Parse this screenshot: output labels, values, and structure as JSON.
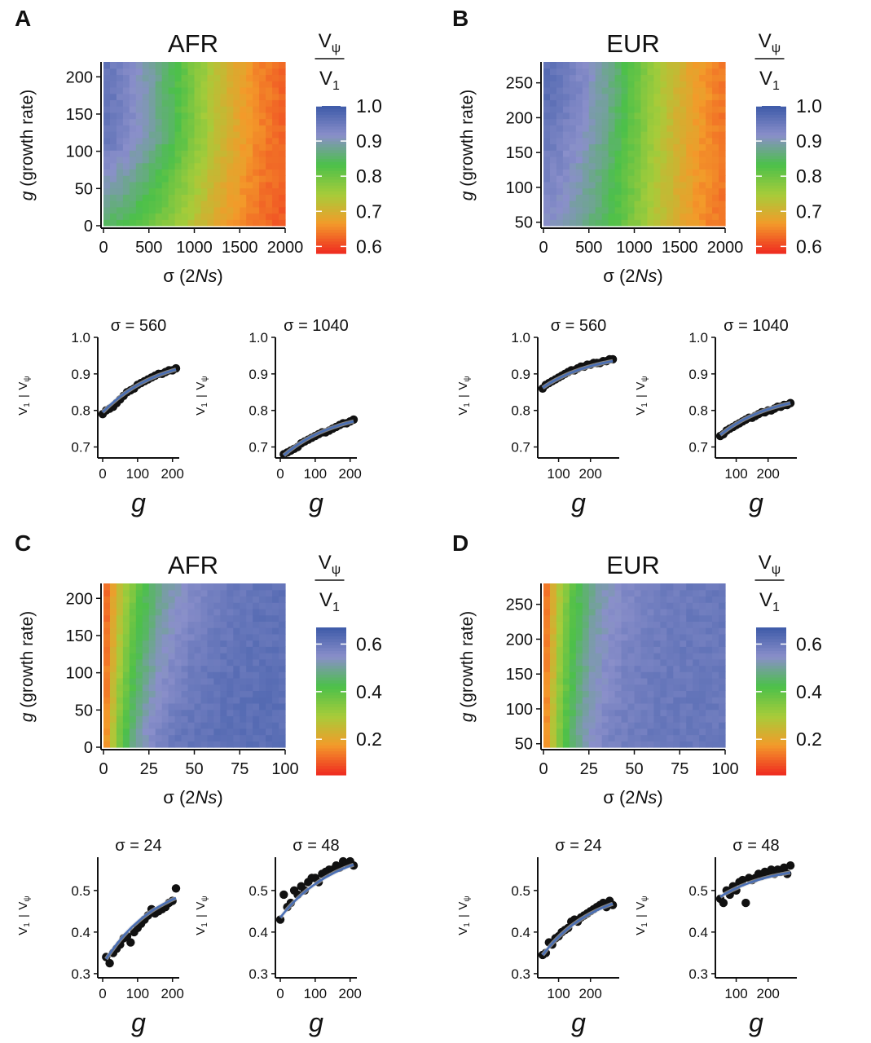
{
  "colors": {
    "axis": "#111111",
    "fit_line": "#4a6fb5",
    "point": "#111111"
  },
  "colormap": [
    "#ef2a21",
    "#f39a2a",
    "#a6cc3a",
    "#4cc04a",
    "#8a8fca",
    "#3d5aa8"
  ],
  "chart_data": [
    {
      "panel": "A",
      "title": "AFR",
      "type": "heatmap",
      "xlabel_pre": "σ (2",
      "xlabel_it": "Ns",
      "xlabel_post": ")",
      "ylabel_it": "g",
      "ylabel_post": " (growth rate)",
      "x_range": [
        0,
        2000
      ],
      "y_range": [
        0,
        220
      ],
      "x_ticks": [
        "0",
        "500",
        "1000",
        "1500",
        "2000"
      ],
      "x_tick_values": [
        0,
        500,
        1000,
        1500,
        2000
      ],
      "y_ticks": [
        "0",
        "50",
        "100",
        "150",
        "200"
      ],
      "y_tick_values": [
        0,
        50,
        100,
        150,
        200
      ],
      "colorbar": {
        "label_num": "V",
        "label_num_sub": "ψ",
        "label_den": "V",
        "label_den_sub": "1",
        "range": [
          0.58,
          1.0
        ],
        "ticks": [
          "1.0",
          "0.9",
          "0.8",
          "0.7",
          "0.6"
        ],
        "tick_values": [
          1.0,
          0.9,
          0.8,
          0.7,
          0.6
        ]
      }
    },
    {
      "panel": "B",
      "title": "EUR",
      "type": "heatmap",
      "xlabel_pre": "σ (2",
      "xlabel_it": "Ns",
      "xlabel_post": ")",
      "ylabel_it": "g",
      "ylabel_post": " (growth rate)",
      "x_range": [
        0,
        2000
      ],
      "y_range": [
        45,
        280
      ],
      "x_ticks": [
        "0",
        "500",
        "1000",
        "1500",
        "2000"
      ],
      "x_tick_values": [
        0,
        500,
        1000,
        1500,
        2000
      ],
      "y_ticks": [
        "50",
        "100",
        "150",
        "200",
        "250"
      ],
      "y_tick_values": [
        50,
        100,
        150,
        200,
        250
      ],
      "colorbar": {
        "label_num": "V",
        "label_num_sub": "ψ",
        "label_den": "V",
        "label_den_sub": "1",
        "range": [
          0.58,
          1.0
        ],
        "ticks": [
          "1.0",
          "0.9",
          "0.8",
          "0.7",
          "0.6"
        ],
        "tick_values": [
          1.0,
          0.9,
          0.8,
          0.7,
          0.6
        ]
      }
    },
    {
      "panel": "C",
      "title": "AFR",
      "type": "heatmap",
      "xlabel_pre": "σ (2",
      "xlabel_it": "Ns",
      "xlabel_post": ")",
      "ylabel_it": "g",
      "ylabel_post": " (growth rate)",
      "x_range": [
        0,
        100
      ],
      "y_range": [
        0,
        220
      ],
      "x_ticks": [
        "0",
        "25",
        "50",
        "75",
        "100"
      ],
      "x_tick_values": [
        0,
        25,
        50,
        75,
        100
      ],
      "y_ticks": [
        "0",
        "50",
        "100",
        "150",
        "200"
      ],
      "y_tick_values": [
        0,
        50,
        100,
        150,
        200
      ],
      "colorbar": {
        "label_num": "V",
        "label_num_sub": "ψ",
        "label_den": "V",
        "label_den_sub": "1",
        "range": [
          0.05,
          0.67
        ],
        "ticks": [
          "0.6",
          "0.4",
          "0.2"
        ],
        "tick_values": [
          0.6,
          0.4,
          0.2
        ]
      }
    },
    {
      "panel": "D",
      "title": "EUR",
      "type": "heatmap",
      "xlabel_pre": "σ (2",
      "xlabel_it": "Ns",
      "xlabel_post": ")",
      "ylabel_it": "g",
      "ylabel_post": " (growth rate)",
      "x_range": [
        0,
        100
      ],
      "y_range": [
        45,
        280
      ],
      "x_ticks": [
        "0",
        "25",
        "50",
        "75",
        "100"
      ],
      "x_tick_values": [
        0,
        25,
        50,
        75,
        100
      ],
      "y_ticks": [
        "50",
        "100",
        "150",
        "200",
        "250"
      ],
      "y_tick_values": [
        50,
        100,
        150,
        200,
        250
      ],
      "colorbar": {
        "label_num": "V",
        "label_num_sub": "ψ",
        "label_den": "V",
        "label_den_sub": "1",
        "range": [
          0.05,
          0.67
        ],
        "ticks": [
          "0.6",
          "0.4",
          "0.2"
        ],
        "tick_values": [
          0.6,
          0.4,
          0.2
        ]
      }
    },
    {
      "panel": "A",
      "type": "scatter",
      "title": "σ = 560",
      "xlabel": "g",
      "ylabel_num": "V",
      "ylabel_num_sub": "ψ",
      "ylabel_den": "V",
      "ylabel_den_sub": "1",
      "x_range": [
        0,
        210
      ],
      "y_range": [
        0.67,
        1.0
      ],
      "x_ticks": [
        "0",
        "100",
        "200"
      ],
      "x_tick_values": [
        0,
        100,
        200
      ],
      "y_ticks": [
        "1.0",
        "0.9",
        "0.8",
        "0.7"
      ],
      "y_tick_values": [
        1.0,
        0.9,
        0.8,
        0.7
      ],
      "x": [
        0,
        10,
        20,
        30,
        40,
        50,
        60,
        70,
        80,
        90,
        100,
        110,
        120,
        130,
        140,
        150,
        160,
        170,
        180,
        190,
        200,
        210
      ],
      "y": [
        0.79,
        0.8,
        0.805,
        0.81,
        0.82,
        0.83,
        0.84,
        0.85,
        0.855,
        0.86,
        0.87,
        0.875,
        0.88,
        0.885,
        0.89,
        0.895,
        0.9,
        0.9,
        0.905,
        0.91,
        0.91,
        0.915
      ],
      "fit": [
        0.795,
        0.912
      ]
    },
    {
      "panel": "A",
      "type": "scatter",
      "title": "σ = 1040",
      "xlabel": "g",
      "ylabel_num": "V",
      "ylabel_num_sub": "ψ",
      "ylabel_den": "V",
      "ylabel_den_sub": "1",
      "x_range": [
        0,
        210
      ],
      "y_range": [
        0.67,
        1.0
      ],
      "x_ticks": [
        "0",
        "100",
        "200"
      ],
      "x_tick_values": [
        0,
        100,
        200
      ],
      "y_ticks": [
        "1.0",
        "0.9",
        "0.8",
        "0.7"
      ],
      "y_tick_values": [
        1.0,
        0.9,
        0.8,
        0.7
      ],
      "x": [
        10,
        20,
        30,
        40,
        50,
        60,
        70,
        80,
        90,
        100,
        110,
        120,
        130,
        140,
        150,
        160,
        170,
        180,
        190,
        200,
        210
      ],
      "y": [
        0.68,
        0.685,
        0.69,
        0.695,
        0.7,
        0.71,
        0.715,
        0.72,
        0.725,
        0.73,
        0.735,
        0.74,
        0.74,
        0.745,
        0.75,
        0.755,
        0.76,
        0.765,
        0.765,
        0.77,
        0.775
      ],
      "fit": [
        0.677,
        0.77
      ]
    },
    {
      "panel": "B",
      "type": "scatter",
      "title": "σ = 560",
      "xlabel": "g",
      "ylabel_num": "V",
      "ylabel_num_sub": "ψ",
      "ylabel_den": "V",
      "ylabel_den_sub": "1",
      "x_range": [
        50,
        280
      ],
      "y_range": [
        0.67,
        1.0
      ],
      "x_ticks": [
        "100",
        "200"
      ],
      "x_tick_values": [
        100,
        200
      ],
      "y_ticks": [
        "1.0",
        "0.9",
        "0.8",
        "0.7"
      ],
      "y_tick_values": [
        1.0,
        0.9,
        0.8,
        0.7
      ],
      "x": [
        50,
        60,
        70,
        80,
        90,
        100,
        110,
        120,
        130,
        140,
        150,
        160,
        170,
        180,
        190,
        200,
        210,
        220,
        230,
        240,
        250,
        260,
        270
      ],
      "y": [
        0.86,
        0.87,
        0.875,
        0.88,
        0.885,
        0.89,
        0.895,
        0.9,
        0.905,
        0.91,
        0.91,
        0.915,
        0.92,
        0.92,
        0.925,
        0.925,
        0.93,
        0.93,
        0.93,
        0.935,
        0.935,
        0.94,
        0.94
      ],
      "fit": [
        0.862,
        0.935
      ]
    },
    {
      "panel": "B",
      "type": "scatter",
      "title": "σ = 1040",
      "xlabel": "g",
      "ylabel_num": "V",
      "ylabel_num_sub": "ψ",
      "ylabel_den": "V",
      "ylabel_den_sub": "1",
      "x_range": [
        50,
        280
      ],
      "y_range": [
        0.67,
        1.0
      ],
      "x_ticks": [
        "100",
        "200"
      ],
      "x_tick_values": [
        100,
        200
      ],
      "y_ticks": [
        "1.0",
        "0.9",
        "0.8",
        "0.7"
      ],
      "y_tick_values": [
        1.0,
        0.9,
        0.8,
        0.7
      ],
      "x": [
        50,
        60,
        70,
        80,
        90,
        100,
        110,
        120,
        130,
        140,
        150,
        160,
        170,
        180,
        190,
        200,
        210,
        220,
        230,
        240,
        250,
        260,
        270
      ],
      "y": [
        0.73,
        0.735,
        0.745,
        0.75,
        0.755,
        0.76,
        0.765,
        0.77,
        0.775,
        0.78,
        0.78,
        0.785,
        0.79,
        0.795,
        0.795,
        0.8,
        0.8,
        0.805,
        0.81,
        0.81,
        0.815,
        0.815,
        0.82
      ],
      "fit": [
        0.733,
        0.82
      ]
    },
    {
      "panel": "C",
      "type": "scatter",
      "title": "σ = 24",
      "xlabel": "g",
      "ylabel_num": "V",
      "ylabel_num_sub": "ψ",
      "ylabel_den": "V",
      "ylabel_den_sub": "1",
      "x_range": [
        0,
        210
      ],
      "y_range": [
        0.29,
        0.58
      ],
      "x_ticks": [
        "0",
        "100",
        "200"
      ],
      "x_tick_values": [
        0,
        100,
        200
      ],
      "y_ticks": [
        "0.5",
        "0.4",
        "0.3"
      ],
      "y_tick_values": [
        0.5,
        0.4,
        0.3
      ],
      "x": [
        10,
        20,
        30,
        40,
        50,
        60,
        70,
        80,
        90,
        100,
        110,
        120,
        130,
        140,
        150,
        160,
        170,
        180,
        190,
        200,
        210
      ],
      "y": [
        0.34,
        0.325,
        0.35,
        0.36,
        0.37,
        0.385,
        0.39,
        0.375,
        0.4,
        0.41,
        0.42,
        0.43,
        0.44,
        0.455,
        0.445,
        0.45,
        0.455,
        0.46,
        0.47,
        0.475,
        0.505
      ],
      "fit": [
        0.335,
        0.482
      ]
    },
    {
      "panel": "C",
      "type": "scatter",
      "title": "σ = 48",
      "xlabel": "g",
      "ylabel_num": "V",
      "ylabel_num_sub": "ψ",
      "ylabel_den": "V",
      "ylabel_den_sub": "1",
      "x_range": [
        0,
        210
      ],
      "y_range": [
        0.29,
        0.58
      ],
      "x_ticks": [
        "0",
        "100",
        "200"
      ],
      "x_tick_values": [
        0,
        100,
        200
      ],
      "y_ticks": [
        "0.5",
        "0.4",
        "0.3"
      ],
      "y_tick_values": [
        0.5,
        0.4,
        0.3
      ],
      "x": [
        0,
        10,
        20,
        30,
        40,
        50,
        60,
        70,
        80,
        90,
        100,
        110,
        120,
        130,
        140,
        150,
        160,
        170,
        180,
        190,
        200,
        210
      ],
      "y": [
        0.43,
        0.49,
        0.46,
        0.47,
        0.5,
        0.49,
        0.51,
        0.5,
        0.52,
        0.53,
        0.53,
        0.52,
        0.54,
        0.545,
        0.55,
        0.55,
        0.56,
        0.555,
        0.57,
        0.565,
        0.57,
        0.56
      ],
      "fit": [
        0.435,
        0.562
      ]
    },
    {
      "panel": "D",
      "type": "scatter",
      "title": "σ = 24",
      "xlabel": "g",
      "ylabel_num": "V",
      "ylabel_num_sub": "ψ",
      "ylabel_den": "V",
      "ylabel_den_sub": "1",
      "x_range": [
        50,
        280
      ],
      "y_range": [
        0.29,
        0.58
      ],
      "x_ticks": [
        "100",
        "200"
      ],
      "x_tick_values": [
        100,
        200
      ],
      "y_ticks": [
        "0.5",
        "0.4",
        "0.3"
      ],
      "y_tick_values": [
        0.5,
        0.4,
        0.3
      ],
      "x": [
        50,
        60,
        70,
        80,
        90,
        100,
        110,
        120,
        130,
        140,
        150,
        160,
        170,
        180,
        190,
        200,
        210,
        220,
        230,
        240,
        250,
        260,
        270
      ],
      "y": [
        0.345,
        0.35,
        0.375,
        0.37,
        0.385,
        0.39,
        0.4,
        0.405,
        0.41,
        0.425,
        0.43,
        0.425,
        0.435,
        0.44,
        0.445,
        0.45,
        0.455,
        0.46,
        0.465,
        0.47,
        0.46,
        0.475,
        0.465
      ],
      "fit": [
        0.345,
        0.468
      ]
    },
    {
      "panel": "D",
      "type": "scatter",
      "title": "σ = 48",
      "xlabel": "g",
      "ylabel_num": "V",
      "ylabel_num_sub": "ψ",
      "ylabel_den": "V",
      "ylabel_den_sub": "1",
      "x_range": [
        50,
        280
      ],
      "y_range": [
        0.29,
        0.58
      ],
      "x_ticks": [
        "100",
        "200"
      ],
      "x_tick_values": [
        100,
        200
      ],
      "y_ticks": [
        "0.5",
        "0.4",
        "0.3"
      ],
      "y_tick_values": [
        0.5,
        0.4,
        0.3
      ],
      "x": [
        50,
        60,
        70,
        80,
        90,
        100,
        110,
        120,
        130,
        140,
        150,
        160,
        170,
        180,
        190,
        200,
        210,
        220,
        230,
        240,
        250,
        260,
        270
      ],
      "y": [
        0.48,
        0.47,
        0.5,
        0.49,
        0.51,
        0.5,
        0.52,
        0.525,
        0.47,
        0.53,
        0.525,
        0.53,
        0.54,
        0.535,
        0.545,
        0.54,
        0.55,
        0.54,
        0.55,
        0.545,
        0.555,
        0.54,
        0.56
      ],
      "fit": [
        0.485,
        0.543
      ]
    }
  ]
}
